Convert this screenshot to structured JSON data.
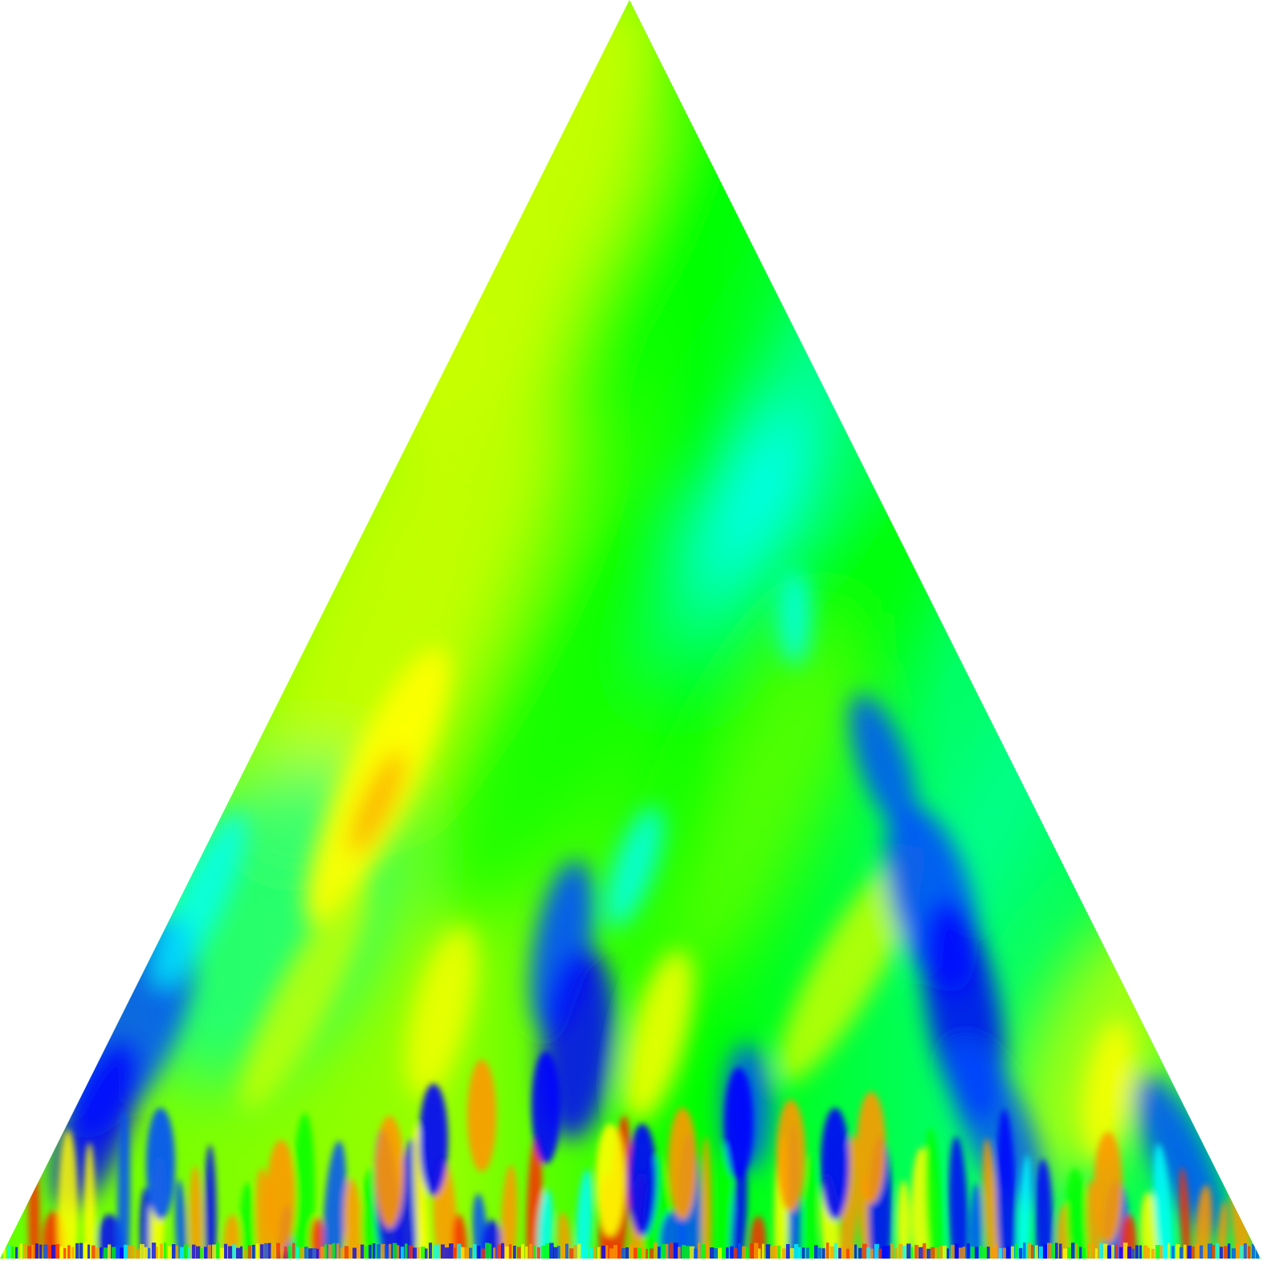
{
  "image": {
    "subject": "triangle-heatmap",
    "colormap": "jet",
    "colors": {
      "background": "#ffffff",
      "deep_blue": "#0000ff",
      "blue": "#0050ff",
      "cyan": "#00ffff",
      "teal": "#00ff99",
      "green": "#00ff00",
      "lime": "#66ff00",
      "yellow_green": "#c8ff00",
      "yellow": "#ffff00",
      "orange": "#ff9900",
      "red": "#ff2a00"
    }
  }
}
